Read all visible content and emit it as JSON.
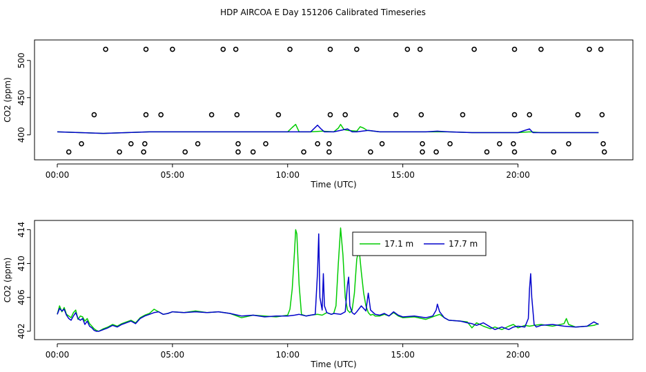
{
  "title": "HDP AIRCOA E  Day 151206  Calibrated Timeseries",
  "colors": {
    "series_17_1": "#00cc00",
    "series_17_7": "#0000cc",
    "axis": "#000000",
    "background": "#ffffff"
  },
  "chart_data": [
    {
      "type": "line",
      "panel": "top",
      "xlabel": "Time (UTC)",
      "ylabel": "CO2 (ppm)",
      "xlim": [
        0,
        24
      ],
      "ylim": [
        372,
        522
      ],
      "x_ticks": [
        0,
        5,
        10,
        15,
        20
      ],
      "x_tick_labels": [
        "00:00",
        "05:00",
        "10:00",
        "15:00",
        "20:00"
      ],
      "y_ticks": [
        400,
        450,
        500
      ],
      "y_tick_labels": [
        "400",
        "450",
        "500"
      ],
      "grid": false,
      "legend": "none",
      "series": [
        {
          "color": "#00cc00",
          "x": [
            0,
            1,
            2,
            3,
            4,
            5,
            6,
            7,
            8,
            9,
            10,
            10.2,
            10.35,
            10.5,
            11,
            11.5,
            12,
            12.2,
            12.3,
            12.45,
            12.6,
            13,
            13.15,
            13.3,
            13.45,
            14,
            15,
            16,
            17,
            18,
            19,
            20,
            20.5,
            21,
            22,
            23,
            23.5
          ],
          "y": [
            404,
            403,
            402,
            403,
            404,
            404,
            404,
            404,
            404,
            404,
            404,
            410,
            414,
            404,
            404,
            405,
            404,
            409,
            414,
            407,
            406,
            405,
            411,
            409,
            406,
            404,
            404,
            404,
            404,
            403,
            403,
            403,
            404,
            403,
            403,
            403,
            403
          ]
        },
        {
          "color": "#0000cc",
          "x": [
            0,
            1,
            2,
            3,
            4,
            5,
            6,
            7,
            8,
            9,
            10,
            11,
            11.3,
            11.45,
            11.6,
            12,
            12.6,
            12.8,
            13,
            13.5,
            14,
            15,
            16,
            16.5,
            17,
            18,
            19,
            20,
            20.5,
            20.65,
            21,
            22,
            23,
            23.5
          ],
          "y": [
            404,
            403,
            402,
            403,
            404,
            404,
            404,
            404,
            404,
            404,
            404,
            404,
            413,
            408,
            404,
            404,
            408,
            404,
            404,
            406,
            404,
            404,
            404,
            405,
            404,
            403,
            403,
            403,
            408,
            403,
            403,
            403,
            403,
            403
          ]
        }
      ],
      "markers": {
        "style": "open-circle",
        "points": [
          [
            2.1,
            515
          ],
          [
            3.85,
            515
          ],
          [
            5.0,
            515
          ],
          [
            7.2,
            515
          ],
          [
            7.75,
            515
          ],
          [
            10.1,
            515
          ],
          [
            11.85,
            515
          ],
          [
            13.0,
            515
          ],
          [
            15.2,
            515
          ],
          [
            15.75,
            515
          ],
          [
            18.1,
            515
          ],
          [
            19.85,
            515
          ],
          [
            21.0,
            515
          ],
          [
            23.1,
            515
          ],
          [
            23.6,
            515
          ],
          [
            1.6,
            427
          ],
          [
            3.85,
            427
          ],
          [
            4.5,
            427
          ],
          [
            6.7,
            427
          ],
          [
            7.8,
            427
          ],
          [
            9.6,
            427
          ],
          [
            11.85,
            427
          ],
          [
            12.5,
            427
          ],
          [
            14.7,
            427
          ],
          [
            15.8,
            427
          ],
          [
            17.6,
            427
          ],
          [
            19.85,
            427
          ],
          [
            20.5,
            427
          ],
          [
            22.6,
            427
          ],
          [
            23.65,
            427
          ],
          [
            1.05,
            388
          ],
          [
            3.2,
            388
          ],
          [
            3.8,
            388
          ],
          [
            6.1,
            388
          ],
          [
            7.85,
            388
          ],
          [
            9.05,
            388
          ],
          [
            11.3,
            388
          ],
          [
            11.8,
            388
          ],
          [
            14.1,
            388
          ],
          [
            15.85,
            388
          ],
          [
            17.05,
            388
          ],
          [
            19.2,
            388
          ],
          [
            19.8,
            388
          ],
          [
            22.2,
            388
          ],
          [
            23.7,
            388
          ],
          [
            0.5,
            377
          ],
          [
            2.7,
            377
          ],
          [
            3.75,
            377
          ],
          [
            5.55,
            377
          ],
          [
            7.85,
            377
          ],
          [
            8.5,
            377
          ],
          [
            10.7,
            377
          ],
          [
            11.8,
            377
          ],
          [
            13.6,
            377
          ],
          [
            15.85,
            377
          ],
          [
            16.45,
            377
          ],
          [
            18.65,
            377
          ],
          [
            19.85,
            377
          ],
          [
            21.55,
            377
          ],
          [
            23.75,
            377
          ]
        ]
      }
    },
    {
      "type": "line",
      "panel": "bottom",
      "xlabel": "Time (UTC)",
      "ylabel": "CO2 (ppm)",
      "xlim": [
        0,
        24
      ],
      "ylim": [
        401.5,
        414.6
      ],
      "x_ticks": [
        0,
        5,
        10,
        15,
        20
      ],
      "x_tick_labels": [
        "00:00",
        "05:00",
        "10:00",
        "15:00",
        "20:00"
      ],
      "y_ticks": [
        402,
        406,
        410,
        414
      ],
      "y_tick_labels": [
        "402",
        "406",
        "410",
        "414"
      ],
      "grid": false,
      "legend": "top-center",
      "series": [
        {
          "name": "17.1 m",
          "color": "#00cc00",
          "x": [
            0,
            0.1,
            0.2,
            0.3,
            0.4,
            0.5,
            0.6,
            0.7,
            0.8,
            0.9,
            1.0,
            1.1,
            1.2,
            1.3,
            1.4,
            1.5,
            1.6,
            1.7,
            1.8,
            2.0,
            2.2,
            2.4,
            2.6,
            2.8,
            3.0,
            3.2,
            3.4,
            3.6,
            3.8,
            4.0,
            4.2,
            4.4,
            4.6,
            4.8,
            5.0,
            5.5,
            6.0,
            6.5,
            7.0,
            7.5,
            8.0,
            8.5,
            9.0,
            9.5,
            10.0,
            10.1,
            10.2,
            10.3,
            10.35,
            10.4,
            10.5,
            10.6,
            10.8,
            11.0,
            11.3,
            11.5,
            11.7,
            11.9,
            12.0,
            12.1,
            12.2,
            12.3,
            12.4,
            12.5,
            12.6,
            12.7,
            12.8,
            12.9,
            13.0,
            13.1,
            13.2,
            13.3,
            13.4,
            13.5,
            13.6,
            13.7,
            13.8,
            14.0,
            14.2,
            14.4,
            14.6,
            14.8,
            15.0,
            15.5,
            16.0,
            16.4,
            16.6,
            16.8,
            17.0,
            17.5,
            17.8,
            18.0,
            18.2,
            18.5,
            18.8,
            19.0,
            19.3,
            19.6,
            19.8,
            20.0,
            20.3,
            20.5,
            20.7,
            21.0,
            21.5,
            22.0,
            22.1,
            22.2,
            22.5,
            23.0,
            23.3,
            23.5
          ],
          "y": [
            404.0,
            405.0,
            404.3,
            404.8,
            404.0,
            403.8,
            403.6,
            404.2,
            404.5,
            403.4,
            403.8,
            403.7,
            403.2,
            403.5,
            402.9,
            402.6,
            402.3,
            402.1,
            402.0,
            402.3,
            402.5,
            402.8,
            402.6,
            402.9,
            403.1,
            403.3,
            403.0,
            403.6,
            403.9,
            404.1,
            404.6,
            404.3,
            404.0,
            404.1,
            404.3,
            404.2,
            404.4,
            404.2,
            404.3,
            404.1,
            403.6,
            403.9,
            403.8,
            403.7,
            403.9,
            404.6,
            407.0,
            411.5,
            414.0,
            413.5,
            407.5,
            404.0,
            403.8,
            403.9,
            404.0,
            403.9,
            404.2,
            404.0,
            404.1,
            405.0,
            410.0,
            414.2,
            411.0,
            406.0,
            404.5,
            404.2,
            404.5,
            406.5,
            410.5,
            411.8,
            409.0,
            406.5,
            405.0,
            404.2,
            403.9,
            404.0,
            403.8,
            403.8,
            404.0,
            403.8,
            404.2,
            403.8,
            403.6,
            403.7,
            403.4,
            403.8,
            404.0,
            403.6,
            403.3,
            403.2,
            403.1,
            402.4,
            403.0,
            402.6,
            402.3,
            402.5,
            402.2,
            402.6,
            402.8,
            402.4,
            402.7,
            402.6,
            402.7,
            402.8,
            402.6,
            402.9,
            403.5,
            402.8,
            402.5,
            402.6,
            402.7,
            402.9
          ]
        },
        {
          "name": "17.7 m",
          "color": "#0000cc",
          "x": [
            0,
            0.1,
            0.2,
            0.3,
            0.4,
            0.5,
            0.6,
            0.7,
            0.8,
            0.9,
            1.0,
            1.1,
            1.2,
            1.3,
            1.4,
            1.5,
            1.6,
            1.7,
            1.8,
            2.0,
            2.2,
            2.4,
            2.6,
            2.8,
            3.0,
            3.2,
            3.4,
            3.6,
            3.8,
            4.0,
            4.2,
            4.4,
            4.6,
            4.8,
            5.0,
            5.5,
            6.0,
            6.5,
            7.0,
            7.5,
            8.0,
            8.5,
            9.0,
            9.5,
            10.0,
            10.3,
            10.5,
            10.8,
            11.0,
            11.2,
            11.3,
            11.35,
            11.4,
            11.5,
            11.55,
            11.6,
            11.7,
            11.9,
            12.0,
            12.3,
            12.5,
            12.6,
            12.65,
            12.7,
            12.8,
            12.9,
            13.0,
            13.2,
            13.4,
            13.5,
            13.6,
            13.8,
            14.0,
            14.2,
            14.4,
            14.6,
            14.8,
            15.0,
            15.5,
            16.0,
            16.3,
            16.45,
            16.5,
            16.6,
            16.8,
            17.0,
            17.5,
            17.8,
            18.0,
            18.2,
            18.5,
            18.8,
            19.0,
            19.3,
            19.6,
            19.8,
            20.0,
            20.3,
            20.45,
            20.5,
            20.55,
            20.6,
            20.7,
            20.8,
            21.0,
            21.5,
            22.0,
            22.5,
            23.0,
            23.3,
            23.5
          ],
          "y": [
            404.0,
            404.7,
            404.4,
            404.6,
            403.9,
            403.5,
            403.3,
            403.8,
            404.2,
            403.5,
            403.3,
            403.5,
            402.8,
            403.2,
            402.6,
            402.4,
            402.1,
            402.0,
            402.0,
            402.2,
            402.4,
            402.7,
            402.5,
            402.8,
            403.0,
            403.2,
            402.9,
            403.5,
            403.8,
            404.0,
            404.2,
            404.3,
            404.0,
            404.1,
            404.3,
            404.2,
            404.3,
            404.2,
            404.3,
            404.1,
            403.8,
            403.9,
            403.7,
            403.8,
            403.8,
            403.9,
            404.0,
            403.8,
            403.9,
            404.0,
            409.0,
            413.5,
            406.0,
            404.5,
            408.8,
            405.0,
            404.2,
            404.0,
            404.1,
            404.0,
            404.3,
            407.5,
            408.4,
            405.0,
            404.2,
            404.0,
            404.3,
            405.0,
            404.4,
            406.5,
            404.5,
            404.0,
            403.9,
            404.1,
            403.8,
            404.3,
            403.9,
            403.7,
            403.8,
            403.6,
            403.8,
            404.5,
            405.2,
            404.3,
            403.6,
            403.3,
            403.2,
            403.0,
            402.9,
            402.7,
            403.0,
            402.5,
            402.2,
            402.5,
            402.2,
            402.5,
            402.6,
            402.5,
            403.5,
            407.0,
            408.8,
            406.0,
            402.8,
            402.5,
            402.7,
            402.8,
            402.6,
            402.5,
            402.6,
            403.1,
            402.8
          ]
        }
      ]
    }
  ]
}
